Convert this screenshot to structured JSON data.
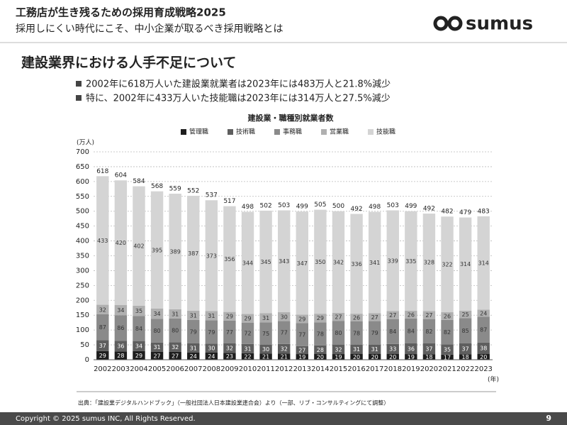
{
  "header": {
    "title": "工務店が生き残るための採用育成戦略2025",
    "subtitle": "採用しにくい時代にこそ、中小企業が取るべき採用戦略とは",
    "logo": "sumus"
  },
  "heading": "建設業界における人手不足について",
  "bullets": [
    "2002年に618万人いた建設業就業者は2023年には483万人と21.8%減少",
    "特に、2002年に433万人いた技能職は2023年には314万人と27.5%減少"
  ],
  "chart_data": {
    "type": "stacked_bar",
    "title": "建設業・職種別就業者数",
    "y_label": "(万人)",
    "x_label": "(年)",
    "categories": [
      "2002",
      "2003",
      "2004",
      "2005",
      "2006",
      "2007",
      "2008",
      "2009",
      "2010",
      "2011",
      "2012",
      "2013",
      "2014",
      "2015",
      "2016",
      "2017",
      "2018",
      "2019",
      "2020",
      "2021",
      "2022",
      "2023"
    ],
    "series": [
      {
        "name": "管理職",
        "color": "#1e1e1e",
        "values": [
          29,
          28,
          29,
          27,
          27,
          24,
          24,
          23,
          22,
          21,
          21,
          19,
          20,
          19,
          20,
          20,
          20,
          19,
          18,
          17,
          18,
          20
        ]
      },
      {
        "name": "技術職",
        "color": "#5e5e5e",
        "values": [
          37,
          36,
          34,
          31,
          32,
          31,
          30,
          32,
          31,
          30,
          32,
          27,
          28,
          32,
          31,
          31,
          33,
          36,
          37,
          35,
          37,
          38
        ]
      },
      {
        "name": "事務職",
        "color": "#8a8a8a",
        "values": [
          87,
          86,
          84,
          80,
          80,
          79,
          79,
          77,
          72,
          75,
          77,
          77,
          78,
          80,
          78,
          79,
          84,
          84,
          82,
          82,
          85,
          87
        ]
      },
      {
        "name": "営業職",
        "color": "#b0b0b0",
        "values": [
          32,
          34,
          35,
          34,
          31,
          31,
          31,
          29,
          29,
          31,
          30,
          29,
          29,
          27,
          26,
          27,
          27,
          26,
          27,
          26,
          25,
          24
        ]
      },
      {
        "name": "技能職",
        "color": "#d4d4d4",
        "values": [
          433,
          420,
          402,
          395,
          389,
          387,
          373,
          356,
          344,
          345,
          343,
          347,
          350,
          342,
          336,
          341,
          339,
          335,
          328,
          322,
          314,
          314
        ]
      }
    ],
    "totals": [
      618,
      604,
      584,
      568,
      559,
      552,
      537,
      517,
      498,
      502,
      503,
      499,
      505,
      500,
      492,
      498,
      503,
      499,
      492,
      482,
      479,
      483
    ],
    "ylim": [
      0,
      700
    ],
    "yticks": [
      0,
      50,
      100,
      150,
      200,
      250,
      300,
      350,
      400,
      450,
      500,
      550,
      600,
      650,
      700
    ],
    "grid": true
  },
  "source": "出典：「建設業デジタルハンドブック」（一般社団法人日本建設業連合会）より（一部、リブ・コンサルティングにて調整）",
  "footer": {
    "copyright": "Copyright © 2025 sumus INC, All Rights Reserved.",
    "page": "9"
  }
}
